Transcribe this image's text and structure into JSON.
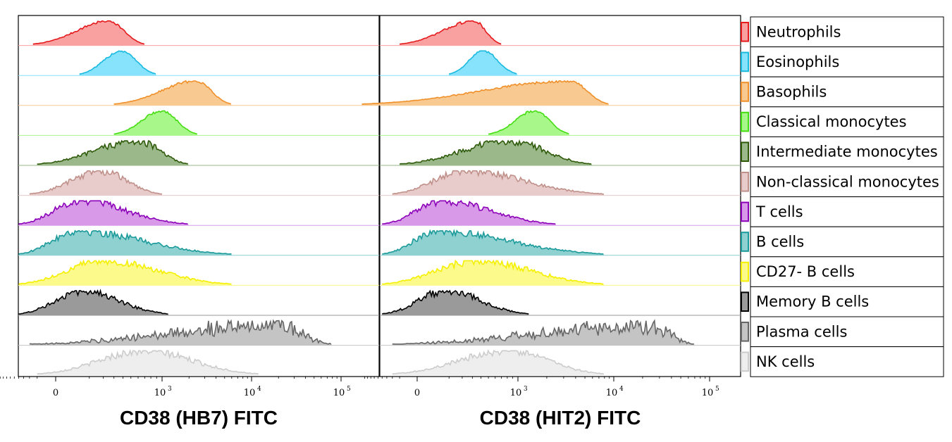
{
  "chart_data": {
    "type": "area",
    "description_free": true,
    "x_scale": "biexponential",
    "x_ticks": [
      {
        "value": 0,
        "label": "0",
        "exp": ""
      },
      {
        "value": 1000,
        "label": "10",
        "exp": "3"
      },
      {
        "value": 10000,
        "label": "10",
        "exp": "4"
      },
      {
        "value": 100000,
        "label": "10",
        "exp": "5"
      }
    ],
    "panels": [
      {
        "xlabel": "CD38 (HB7) FITC"
      },
      {
        "xlabel": "CD38 (HIT2) FITC"
      }
    ],
    "series": [
      {
        "name": "Neutrophils",
        "color": "#e41a1c",
        "fill": "#f9a0a0",
        "panels": [
          {
            "peak": 250,
            "range": [
              -150,
              700
            ]
          },
          {
            "peak": 320,
            "range": [
              -100,
              700
            ]
          }
        ]
      },
      {
        "name": "Eosinophils",
        "color": "#1ab9e0",
        "fill": "#86e3fb",
        "panels": [
          {
            "peak": 380,
            "range": [
              50,
              900
            ]
          },
          {
            "peak": 430,
            "range": [
              100,
              1000
            ]
          }
        ]
      },
      {
        "name": "Basophils",
        "color": "#f0902a",
        "fill": "#f8c990",
        "panels": [
          {
            "peak": 2400,
            "range": [
              300,
              6000
            ]
          },
          {
            "peak": 3500,
            "range": [
              -1500,
              9000
            ]
          }
        ]
      },
      {
        "name": "Classical monocytes",
        "color": "#44dd11",
        "fill": "#a8f78a",
        "panels": [
          {
            "peak": 1000,
            "range": [
              300,
              2500
            ]
          },
          {
            "peak": 1500,
            "range": [
              500,
              3500
            ]
          }
        ]
      },
      {
        "name": "Intermediate monocytes",
        "color": "#2e5a0a",
        "fill": "#9ab889",
        "panels": [
          {
            "peak": 600,
            "range": [
              -100,
              2000
            ]
          },
          {
            "peak": 850,
            "range": [
              -100,
              6000
            ]
          }
        ]
      },
      {
        "name": "Non-classical monocytes",
        "color": "#c0908a",
        "fill": "#e8cccc",
        "panels": [
          {
            "peak": 180,
            "range": [
              -200,
              1000
            ]
          },
          {
            "peak": 220,
            "range": [
              -200,
              8000
            ]
          }
        ]
      },
      {
        "name": "T cells",
        "color": "#8b00b8",
        "fill": "#d89ae8",
        "panels": [
          {
            "peak": 50,
            "range": [
              -400,
              2000
            ]
          },
          {
            "peak": 60,
            "range": [
              -400,
              2500
            ]
          }
        ]
      },
      {
        "name": "B cells",
        "color": "#1a9a9a",
        "fill": "#8fd0d0",
        "panels": [
          {
            "peak": 40,
            "range": [
              -400,
              6000
            ]
          },
          {
            "peak": 40,
            "range": [
              -400,
              8000
            ]
          }
        ]
      },
      {
        "name": "CD27- B cells",
        "color": "#f5f000",
        "fill": "#fbfa8a",
        "panels": [
          {
            "peak": 200,
            "range": [
              -400,
              6000
            ]
          },
          {
            "peak": 350,
            "range": [
              -400,
              8000
            ]
          }
        ]
      },
      {
        "name": "Memory B cells",
        "color": "#000000",
        "fill": "#9a9a9a",
        "panels": [
          {
            "peak": 60,
            "range": [
              -400,
              1200
            ]
          },
          {
            "peak": 80,
            "range": [
              -400,
              1300
            ]
          }
        ]
      },
      {
        "name": "Plasma cells",
        "color": "#666666",
        "fill": "#c4c4c4",
        "panels": [
          {
            "peak": 20000,
            "range": [
              -200,
              80000
            ]
          },
          {
            "peak": 25000,
            "range": [
              -200,
              70000
            ]
          }
        ]
      },
      {
        "name": "NK cells",
        "color": "#cccccc",
        "fill": "#eeeeee",
        "panels": [
          {
            "peak": 700,
            "range": [
              -100,
              12000
            ]
          },
          {
            "peak": 800,
            "range": [
              -200,
              8000
            ]
          }
        ]
      }
    ]
  }
}
